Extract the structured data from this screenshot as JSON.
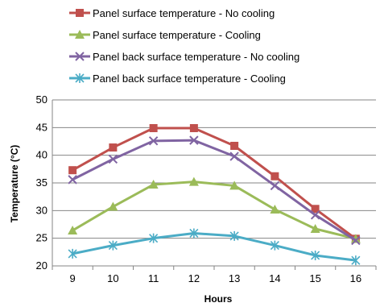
{
  "chart_data": {
    "type": "line",
    "title": "",
    "xlabel": "Hours",
    "ylabel": "Temperature (°C)",
    "x": [
      9,
      10,
      11,
      12,
      13,
      14,
      15,
      16
    ],
    "ylim": [
      20,
      50
    ],
    "yticks": [
      20,
      25,
      30,
      35,
      40,
      45,
      50
    ],
    "grid": "horizontal",
    "legend_position": "top",
    "series": [
      {
        "name": "Panel surface temperature - No cooling",
        "color": "#c0504d",
        "marker": "square",
        "values": [
          37.3,
          41.4,
          44.9,
          44.9,
          41.7,
          36.2,
          30.3,
          24.9
        ]
      },
      {
        "name": "Panel surface temperature - Cooling",
        "color": "#9bbb59",
        "marker": "triangle",
        "values": [
          26.4,
          30.7,
          34.7,
          35.2,
          34.5,
          30.2,
          26.7,
          24.9
        ]
      },
      {
        "name": "Panel back surface temperature - No cooling",
        "color": "#8064a2",
        "marker": "x",
        "values": [
          35.6,
          39.3,
          42.6,
          42.7,
          39.8,
          34.5,
          29.2,
          24.6
        ]
      },
      {
        "name": "Panel back surface temperature - Cooling",
        "color": "#4bacc6",
        "marker": "asterisk",
        "values": [
          22.2,
          23.7,
          25.0,
          25.9,
          25.4,
          23.7,
          21.9,
          21.0
        ]
      }
    ]
  }
}
